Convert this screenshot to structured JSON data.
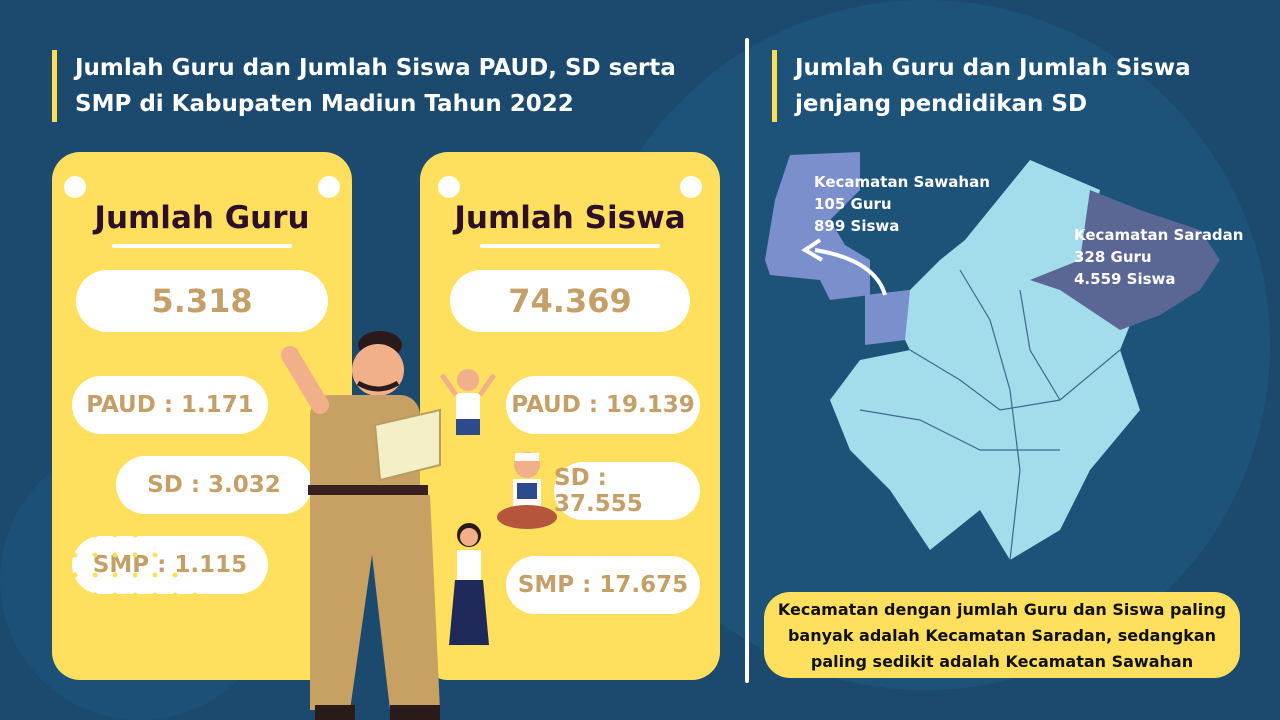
{
  "left": {
    "title_line1": "Jumlah Guru dan Jumlah Siswa PAUD, SD serta",
    "title_line2": "SMP di Kabupaten Madiun Tahun 2022"
  },
  "guru": {
    "heading": "Jumlah Guru",
    "total": "5.318",
    "paud": "PAUD : 1.171",
    "sd": "SD : 3.032",
    "smp": "SMP : 1.115"
  },
  "siswa": {
    "heading": "Jumlah Siswa",
    "total": "74.369",
    "paud": "PAUD : 19.139",
    "sd": "SD : 37.555",
    "smp": "SMP : 17.675"
  },
  "right": {
    "title_line1": "Jumlah Guru dan Jumlah Siswa",
    "title_line2": "jenjang pendidikan SD"
  },
  "map": {
    "sawahan": {
      "name": "Kecamatan Sawahan",
      "guru": "105 Guru",
      "siswa": "899 Siswa",
      "color": "#7b8fcc"
    },
    "saradan": {
      "name": "Kecamatan Saradan",
      "guru": "328 Guru",
      "siswa": "4.559 Siswa",
      "color": "#5a6694"
    },
    "base_color": "#a3dcea"
  },
  "note": {
    "line1": "Kecamatan dengan jumlah Guru dan Siswa paling",
    "line2": "banyak adalah Kecamatan Saradan, sedangkan",
    "line3": "paling sedikit adalah Kecamatan Sawahan"
  },
  "colors": {
    "background": "#1b4a6e",
    "accent": "#ffdf5e",
    "value_text": "#c49f67"
  }
}
